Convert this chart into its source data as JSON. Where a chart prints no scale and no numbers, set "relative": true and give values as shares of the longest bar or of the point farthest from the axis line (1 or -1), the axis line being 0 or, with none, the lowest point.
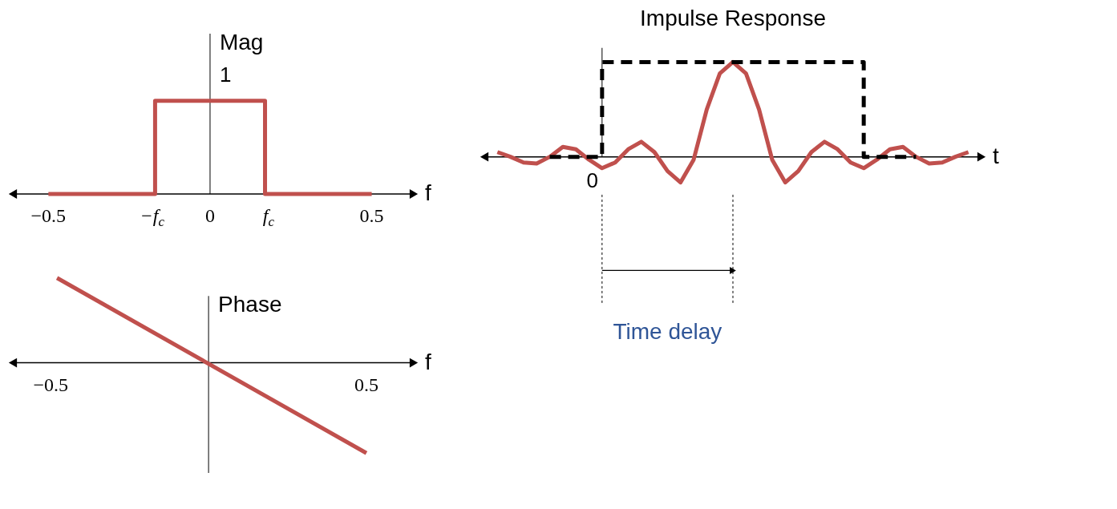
{
  "chart_data": [
    {
      "type": "step",
      "relative": true,
      "xlabel": "f",
      "ylabel": "Mag",
      "x": [
        -0.5,
        -0.17,
        0.17,
        0.5
      ],
      "values": [
        0,
        1,
        0,
        0
      ],
      "color": "#c0504d",
      "xlim": [
        -0.61,
        0.63
      ],
      "xticks": [
        -0.5,
        {
          "value": -0.17,
          "label": "−f$_{c}$"
        },
        0,
        {
          "value": 0.17,
          "label": "f$_{c}$"
        },
        0.5
      ],
      "annotations": [
        {
          "text": "1",
          "x": 0,
          "y": 1
        }
      ]
    },
    {
      "type": "line",
      "relative": true,
      "xlabel": "f",
      "ylabel": "Phase",
      "x": [
        -0.48,
        0.5
      ],
      "values": [
        0.94,
        -1
      ],
      "color": "#c0504d",
      "xlim": [
        -0.62,
        0.65
      ],
      "xticks": [
        -0.5,
        0.5
      ]
    },
    {
      "type": "line",
      "relative": true,
      "title": "Impulse Response",
      "xlabel": "t",
      "categories": [
        null,
        null,
        null,
        null,
        null,
        null,
        null,
        null,
        null,
        null,
        null,
        null,
        null,
        null,
        null,
        null,
        null,
        null,
        null,
        null,
        null,
        null,
        null,
        null,
        null,
        null,
        null,
        null,
        null,
        null,
        null,
        null,
        null,
        null,
        null,
        null,
        null
      ],
      "series": [
        {
          "color": "#c0504d",
          "values": [
            0.05,
            0,
            -0.06,
            -0.07,
            0,
            0.105,
            0.08,
            -0.03,
            -0.12,
            -0.06,
            0.08,
            0.159,
            0.05,
            -0.15,
            -0.27,
            -0.03,
            0.5,
            0.88,
            1,
            0.88,
            0.5,
            -0.03,
            -0.27,
            -0.15,
            0.05,
            0.159,
            0.08,
            -0.06,
            -0.12,
            -0.03,
            0.08,
            0.105,
            0,
            -0.07,
            -0.06,
            0,
            0.05
          ]
        },
        {
          "type": "step",
          "color": "#000000",
          "line_style": "dashed",
          "values": [
            null,
            null,
            null,
            null,
            0,
            0,
            0,
            0,
            1,
            1,
            1,
            1,
            1,
            1,
            1,
            1,
            1,
            1,
            1,
            1,
            1,
            1,
            1,
            1,
            1,
            1,
            1,
            1,
            0,
            0,
            0,
            0,
            0,
            null,
            null,
            null,
            null
          ]
        }
      ],
      "annotations": [
        "0",
        "Time delay"
      ]
    }
  ]
}
